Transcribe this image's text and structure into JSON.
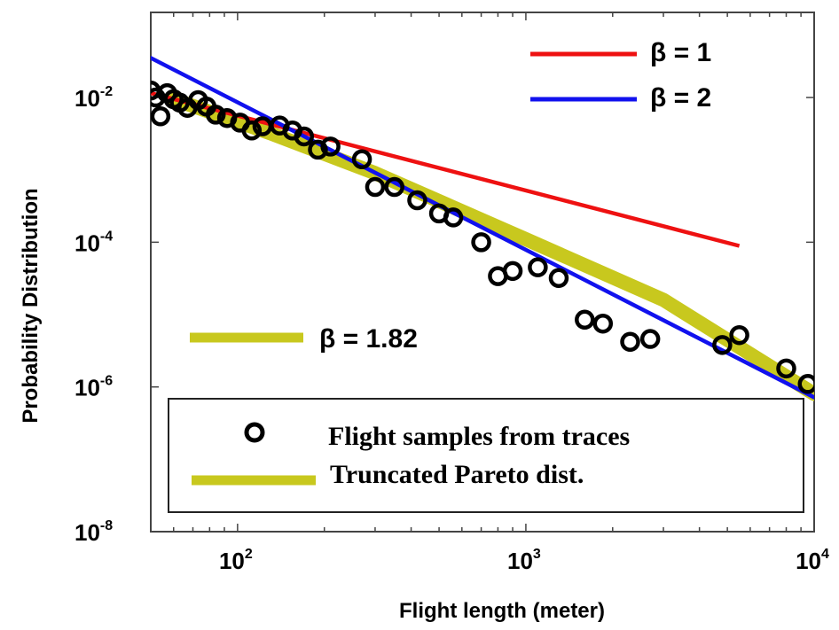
{
  "chart_data": {
    "type": "scatter",
    "xlabel": "Flight length (meter)",
    "ylabel": "Probability Distribution",
    "xscale": "log",
    "yscale": "log",
    "xlim": [
      50,
      10000
    ],
    "ylim": [
      1e-08,
      0.15
    ],
    "x_ticks": [
      {
        "value": 100,
        "base": "10",
        "exp": "2"
      },
      {
        "value": 1000,
        "base": "10",
        "exp": "3"
      },
      {
        "value": 10000,
        "base": "10",
        "exp": "4"
      }
    ],
    "y_ticks": [
      {
        "value": 0.01,
        "base": "10",
        "exp": "-2"
      },
      {
        "value": 0.0001,
        "base": "10",
        "exp": "-4"
      },
      {
        "value": 1e-06,
        "base": "10",
        "exp": "-6"
      },
      {
        "value": 1e-08,
        "base": "10",
        "exp": "-8"
      }
    ],
    "grid": false,
    "samples": {
      "name": "Flight samples from traces",
      "marker_color": "#000000",
      "points": [
        {
          "x": 50,
          "y": 0.0125
        },
        {
          "x": 52,
          "y": 0.01
        },
        {
          "x": 54,
          "y": 0.0055
        },
        {
          "x": 57,
          "y": 0.0115
        },
        {
          "x": 60,
          "y": 0.0095
        },
        {
          "x": 63,
          "y": 0.0085
        },
        {
          "x": 67,
          "y": 0.0072
        },
        {
          "x": 73,
          "y": 0.0092
        },
        {
          "x": 78,
          "y": 0.0075
        },
        {
          "x": 84,
          "y": 0.0058
        },
        {
          "x": 92,
          "y": 0.0052
        },
        {
          "x": 102,
          "y": 0.0045
        },
        {
          "x": 112,
          "y": 0.0035
        },
        {
          "x": 122,
          "y": 0.004
        },
        {
          "x": 140,
          "y": 0.0041
        },
        {
          "x": 155,
          "y": 0.0035
        },
        {
          "x": 170,
          "y": 0.0029
        },
        {
          "x": 190,
          "y": 0.0019
        },
        {
          "x": 210,
          "y": 0.0021
        },
        {
          "x": 270,
          "y": 0.0014
        },
        {
          "x": 300,
          "y": 0.00058
        },
        {
          "x": 350,
          "y": 0.00058
        },
        {
          "x": 420,
          "y": 0.00038
        },
        {
          "x": 500,
          "y": 0.00025
        },
        {
          "x": 560,
          "y": 0.00022
        },
        {
          "x": 700,
          "y": 0.0001
        },
        {
          "x": 800,
          "y": 3.4e-05
        },
        {
          "x": 900,
          "y": 4e-05
        },
        {
          "x": 1100,
          "y": 4.5e-05
        },
        {
          "x": 1300,
          "y": 3.2e-05
        },
        {
          "x": 1600,
          "y": 8.5e-06
        },
        {
          "x": 1850,
          "y": 7.5e-06
        },
        {
          "x": 2300,
          "y": 4.2e-06
        },
        {
          "x": 2700,
          "y": 4.6e-06
        },
        {
          "x": 4800,
          "y": 3.8e-06
        },
        {
          "x": 5500,
          "y": 5.2e-06
        },
        {
          "x": 8000,
          "y": 1.8e-06
        },
        {
          "x": 9500,
          "y": 1.1e-06
        }
      ]
    },
    "fits": [
      {
        "name": "β = 1",
        "color": "#ee1111",
        "x": [
          50,
          5500
        ],
        "y": [
          0.0115,
          8.9e-05
        ]
      },
      {
        "name": "β = 2",
        "color": "#1111ee",
        "x": [
          47,
          10500
        ],
        "y": [
          0.04,
          6.5e-07
        ]
      }
    ],
    "pareto": {
      "name": "Truncated Pareto dist.",
      "annotation": "β = 1.82",
      "color": "#c8c81e",
      "x": [
        60,
        130,
        300,
        1000,
        3000,
        10000
      ],
      "y": [
        0.0095,
        0.0032,
        0.0009,
        0.00011,
        1.6e-05,
        8e-07
      ]
    },
    "legend": {
      "placement": "bottom"
    }
  }
}
